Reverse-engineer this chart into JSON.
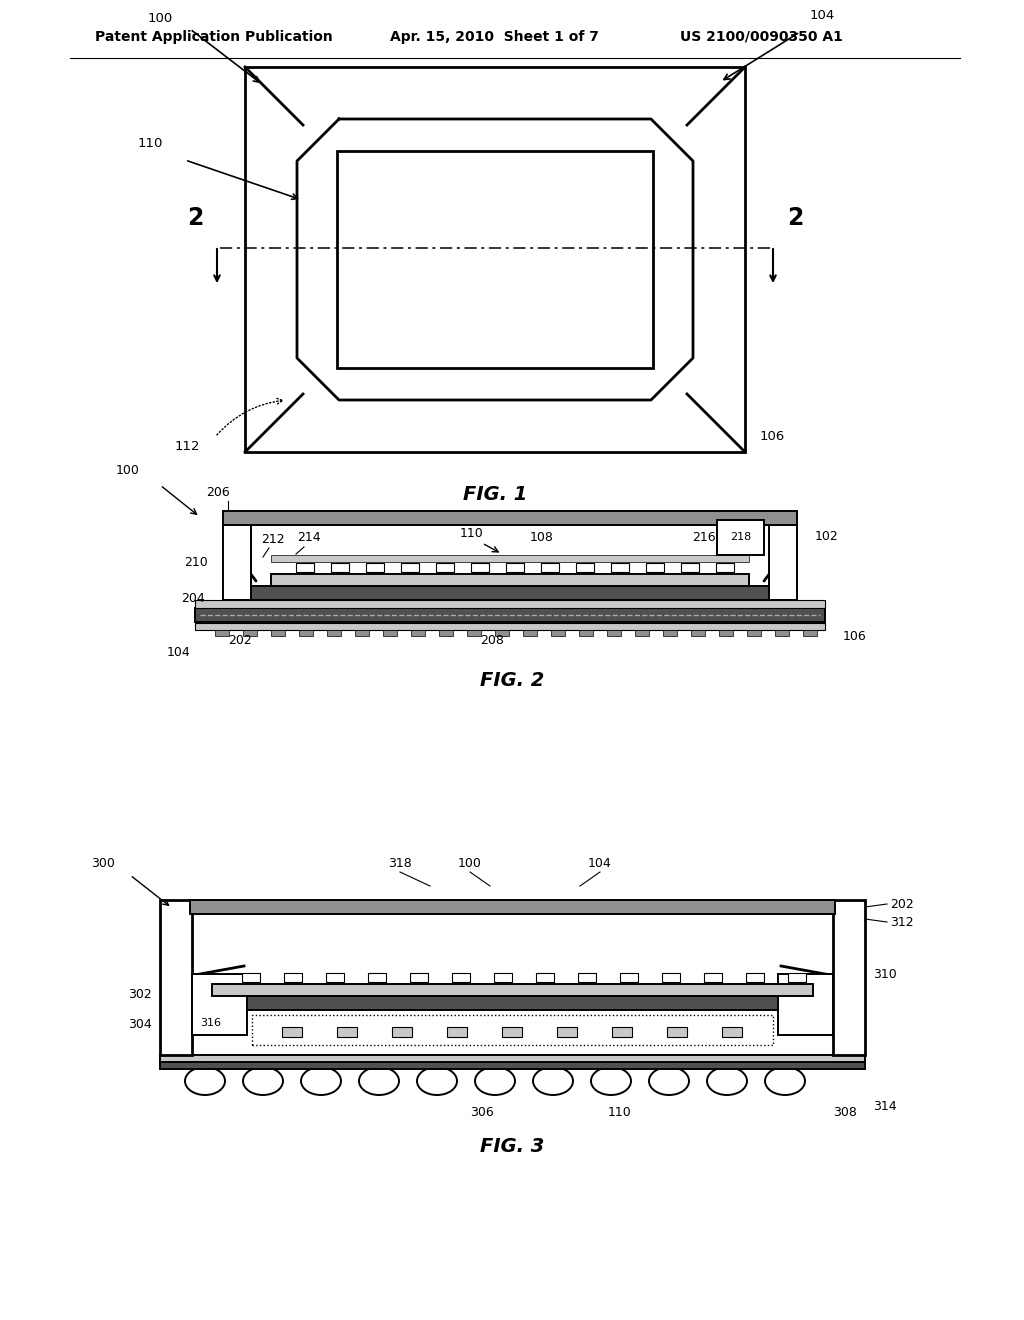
{
  "header_left": "Patent Application Publication",
  "header_mid": "Apr. 15, 2010  Sheet 1 of 7",
  "header_right": "US 2100/0090350 A1",
  "fig1_label": "FIG. 1",
  "fig2_label": "FIG. 2",
  "fig3_label": "FIG. 3",
  "bg_color": "#ffffff",
  "lc": "#000000",
  "gray1": "#c8c8c8",
  "gray2": "#909090",
  "gray3": "#505050",
  "light_gray": "#e0e0e0"
}
